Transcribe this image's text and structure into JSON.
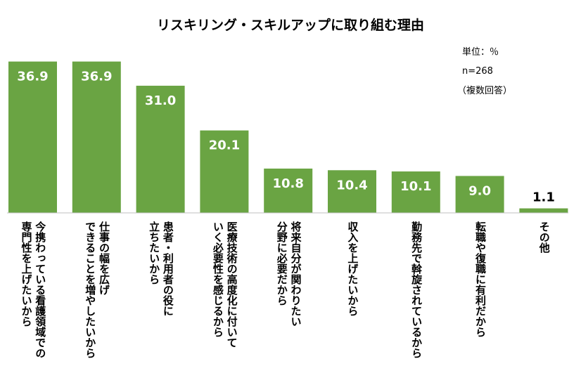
{
  "chart_data": {
    "type": "bar",
    "title": "リスキリング・スキルアップに取り組む理由",
    "notes": [
      "単位：％",
      "n=268",
      "（複数回答）"
    ],
    "categories": [
      [
        "今携わっている看護領域での",
        "専門性を上げたいから"
      ],
      [
        "仕事の幅を広げ",
        "できることを増やしたいから"
      ],
      [
        "患者・利用者の役に",
        "立ちたいから"
      ],
      [
        "医療技術の高度化に付いて",
        "いく必要性を感じるから"
      ],
      [
        "将来自分が関わりたい",
        "分野に必要だから"
      ],
      [
        "収入を上げたいから"
      ],
      [
        "勤務先で斡旋されているから"
      ],
      [
        "転職や復職に有利だから"
      ],
      [
        "その他"
      ]
    ],
    "values": [
      36.9,
      36.9,
      31.0,
      20.1,
      10.8,
      10.4,
      10.1,
      9.0,
      1.1
    ],
    "value_labels": [
      "36.9",
      "36.9",
      "31.0",
      "20.1",
      "10.8",
      "10.4",
      "10.1",
      "9.0",
      "1.1"
    ],
    "ylim": [
      0,
      38.2
    ],
    "colors": {
      "bar": "#6aa443",
      "value_inside": "#ffffff",
      "value_outside": "#000000",
      "axis": "#bfbfbf"
    }
  }
}
